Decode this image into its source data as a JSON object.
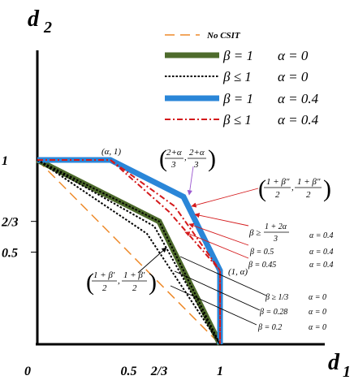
{
  "chart_data": {
    "type": "line",
    "xlabel": {
      "base": "d",
      "sub": "1"
    },
    "ylabel": {
      "base": "d",
      "sub": "2"
    },
    "xlim": [
      0,
      1.15
    ],
    "ylim": [
      0,
      1.35
    ],
    "x_ticks": [
      {
        "value": 0,
        "label": "0"
      },
      {
        "value": 0.5,
        "label": "0.5"
      },
      {
        "value": 0.6667,
        "label": "2/3"
      },
      {
        "value": 1,
        "label": "1"
      }
    ],
    "y_ticks": [
      {
        "value": 0.5,
        "label": "0.5"
      },
      {
        "value": 0.6667,
        "label": "2/3"
      },
      {
        "value": 1,
        "label": "1"
      }
    ],
    "legend_position": "top-right",
    "legend": [
      {
        "beta": "β = 1",
        "alpha": "α = 0",
        "color": "#4e6b2c",
        "style": "solid-thick"
      },
      {
        "beta": "β ≤ 1",
        "alpha": "α = 0",
        "color": "#000000",
        "style": "dotted"
      },
      {
        "beta": "β = 1",
        "alpha": "α = 0.4",
        "color": "#2a86d8",
        "style": "solid-thick"
      },
      {
        "beta": "β ≤ 1",
        "alpha": "α = 0.4",
        "color": "#d4191b",
        "style": "dashdot"
      }
    ],
    "series": [
      {
        "name": "No CSIT",
        "color": "#ee8a2a",
        "style": "dashed",
        "x": [
          0,
          1
        ],
        "y": [
          1,
          0
        ]
      },
      {
        "name": "β = 1, α = 0",
        "color": "#4e6b2c",
        "style": "solid-thick",
        "x": [
          0,
          0.6667,
          1
        ],
        "y": [
          1,
          0.6667,
          0
        ]
      },
      {
        "name": "β = 1, α = 0.4",
        "color": "#2a86d8",
        "style": "solid-thick",
        "x": [
          0,
          0.4,
          0.8,
          1,
          1
        ],
        "y": [
          1,
          1,
          0.8,
          0.4,
          0
        ]
      },
      {
        "name": "β = 0.5, α = 0.4",
        "color": "#d4191b",
        "style": "dashdot",
        "x": [
          0,
          0.4,
          0.75,
          1,
          1
        ],
        "y": [
          1,
          1,
          0.75,
          0.4,
          0
        ]
      },
      {
        "name": "β = 0.45, α = 0.4",
        "color": "#d4191b",
        "style": "dashdot",
        "x": [
          0,
          0.4,
          0.72,
          1,
          1
        ],
        "y": [
          1,
          1,
          0.72,
          0.4,
          0
        ]
      },
      {
        "name": "β ≥ 1/3, α = 0",
        "color": "#000000",
        "style": "dotted",
        "x": [
          0,
          0.6667,
          1
        ],
        "y": [
          1,
          0.6667,
          0
        ]
      },
      {
        "name": "β = 0.28, α = 0",
        "color": "#000000",
        "style": "dotted",
        "x": [
          0,
          0.64,
          1
        ],
        "y": [
          1,
          0.64,
          0
        ]
      },
      {
        "name": "β = 0.2, α = 0",
        "color": "#000000",
        "style": "dotted",
        "x": [
          0,
          0.6,
          1
        ],
        "y": [
          1,
          0.6,
          0
        ]
      }
    ],
    "annotations": {
      "alpha_one": "(α, 1)",
      "one_alpha": "(1, α)",
      "frac_2pa": "2+α",
      "frac_3": "3",
      "beta_dd_num": "1 + β″",
      "beta_d_num": "1 + β′",
      "frac_2": "2",
      "cond_beta_geq": "β ≥",
      "cond_1p2a": "1 + 2α",
      "cond_alpha04": "α = 0.4",
      "r1_beta": "β = 0.5",
      "r1_alpha": "α = 0.4",
      "r2_beta": "β = 0.45",
      "r2_alpha": "α = 0.4",
      "b1_beta": "β ≥ 1/3",
      "b1_alpha": "α = 0",
      "b2_beta": "β = 0.28",
      "b2_alpha": "α = 0",
      "b3_beta": "β = 0.2",
      "b3_alpha": "α = 0"
    }
  }
}
